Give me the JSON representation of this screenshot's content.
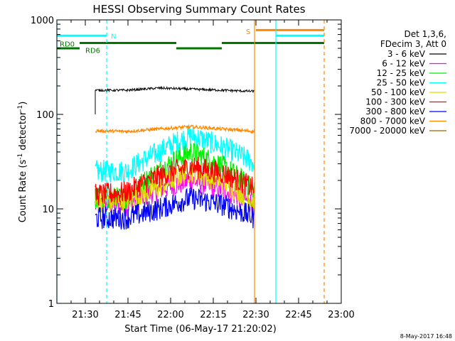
{
  "chart_data": {
    "type": "line",
    "title": "HESSI Observing Summary Count Rates",
    "xlabel": "Start Time (06-May-17 21:20:02)",
    "ylabel_prefix": "Count Rate (s",
    "ylabel_sup1": "-1",
    "ylabel_mid": " detector",
    "ylabel_sup2": "-1",
    "ylabel_suffix": ")",
    "y_scale": "log",
    "ylim": [
      1,
      1000
    ],
    "xlim_minutes": [
      0,
      100
    ],
    "x_ticks": [
      {
        "min": 10,
        "label": "21:30"
      },
      {
        "min": 25,
        "label": "21:45"
      },
      {
        "min": 40,
        "label": "22:00"
      },
      {
        "min": 55,
        "label": "22:15"
      },
      {
        "min": 70,
        "label": "22:30"
      },
      {
        "min": 85,
        "label": "22:45"
      },
      {
        "min": 100,
        "label": "23:00"
      }
    ],
    "y_ticks": [
      {
        "value": 1,
        "label": "1"
      },
      {
        "value": 10,
        "label": "10"
      },
      {
        "value": 100,
        "label": "100"
      },
      {
        "value": 1000,
        "label": "1000"
      }
    ],
    "legend_header": [
      "Det 1,3,6,",
      "FDecim 3, Att 0"
    ],
    "legend_placement": "top-right, outside plot",
    "data_start_min": 13.5,
    "data_end_min": 69.5,
    "series": [
      {
        "name": "3 - 6 keV",
        "color": "#000000",
        "profile": [
          180,
          180,
          190,
          185,
          180,
          175
        ]
      },
      {
        "name": "6 - 12 keV",
        "color": "#ff00ff",
        "profile": [
          11,
          11,
          16,
          20,
          16,
          11
        ]
      },
      {
        "name": "12 - 25 keV",
        "color": "#00ee00",
        "profile": [
          13,
          13,
          25,
          40,
          28,
          15
        ]
      },
      {
        "name": "25 - 50 keV",
        "color": "#00ffff",
        "profile": [
          25,
          25,
          40,
          60,
          45,
          30
        ]
      },
      {
        "name": "50 - 100 keV",
        "color": "#dddd00",
        "profile": [
          12,
          12,
          17,
          25,
          19,
          12
        ]
      },
      {
        "name": "100 - 300 keV",
        "color": "#ff0000",
        "profile": [
          14,
          15,
          22,
          28,
          24,
          16
        ]
      },
      {
        "name": "300 - 800 keV",
        "color": "#0000ff",
        "profile": [
          8,
          8,
          10,
          13,
          11,
          8
        ]
      },
      {
        "name": "800 - 7000 keV",
        "color": "#ff8800",
        "profile": [
          67,
          66,
          70,
          74,
          70,
          66
        ]
      },
      {
        "name": "7000 - 20000 keV",
        "color": "#996600",
        "profile": []
      }
    ],
    "flags": [
      {
        "label": "RD0",
        "color": "#007700",
        "label_min": 1,
        "label_value": 560,
        "segments": [
          {
            "from": 0,
            "to": 8,
            "value": 500
          }
        ]
      },
      {
        "label": "RD6",
        "color": "#007700",
        "label_min": 10,
        "label_value": 480,
        "segments": [
          {
            "from": 8,
            "to": 42,
            "value": 570
          },
          {
            "from": 42,
            "to": 58,
            "value": 500
          },
          {
            "from": 58,
            "to": 94,
            "value": 570
          }
        ]
      },
      {
        "label": "N",
        "color": "#00ffff",
        "label_min": 19,
        "label_value": 680,
        "segments": [
          {
            "from": 0,
            "to": 17.5,
            "value": 680
          },
          {
            "from": 77,
            "to": 94,
            "value": 680
          }
        ]
      },
      {
        "label": "S",
        "color": "#ff8800",
        "label_min": 66.5,
        "label_value": 760,
        "segments": [
          {
            "from": 70,
            "to": 94,
            "value": 780
          }
        ]
      }
    ],
    "vlines": [
      {
        "min": 0,
        "color": "#00ffff",
        "dashed": false
      },
      {
        "min": 17.5,
        "color": "#00ffff",
        "dashed": true
      },
      {
        "min": 69.5,
        "color": "#ff8800",
        "dashed": false
      },
      {
        "min": 77,
        "color": "#00ffff",
        "dashed": false
      },
      {
        "min": 94,
        "color": "#ff8800",
        "dashed": true
      }
    ],
    "footer_timestamp": "8-May-2017 16:48"
  }
}
